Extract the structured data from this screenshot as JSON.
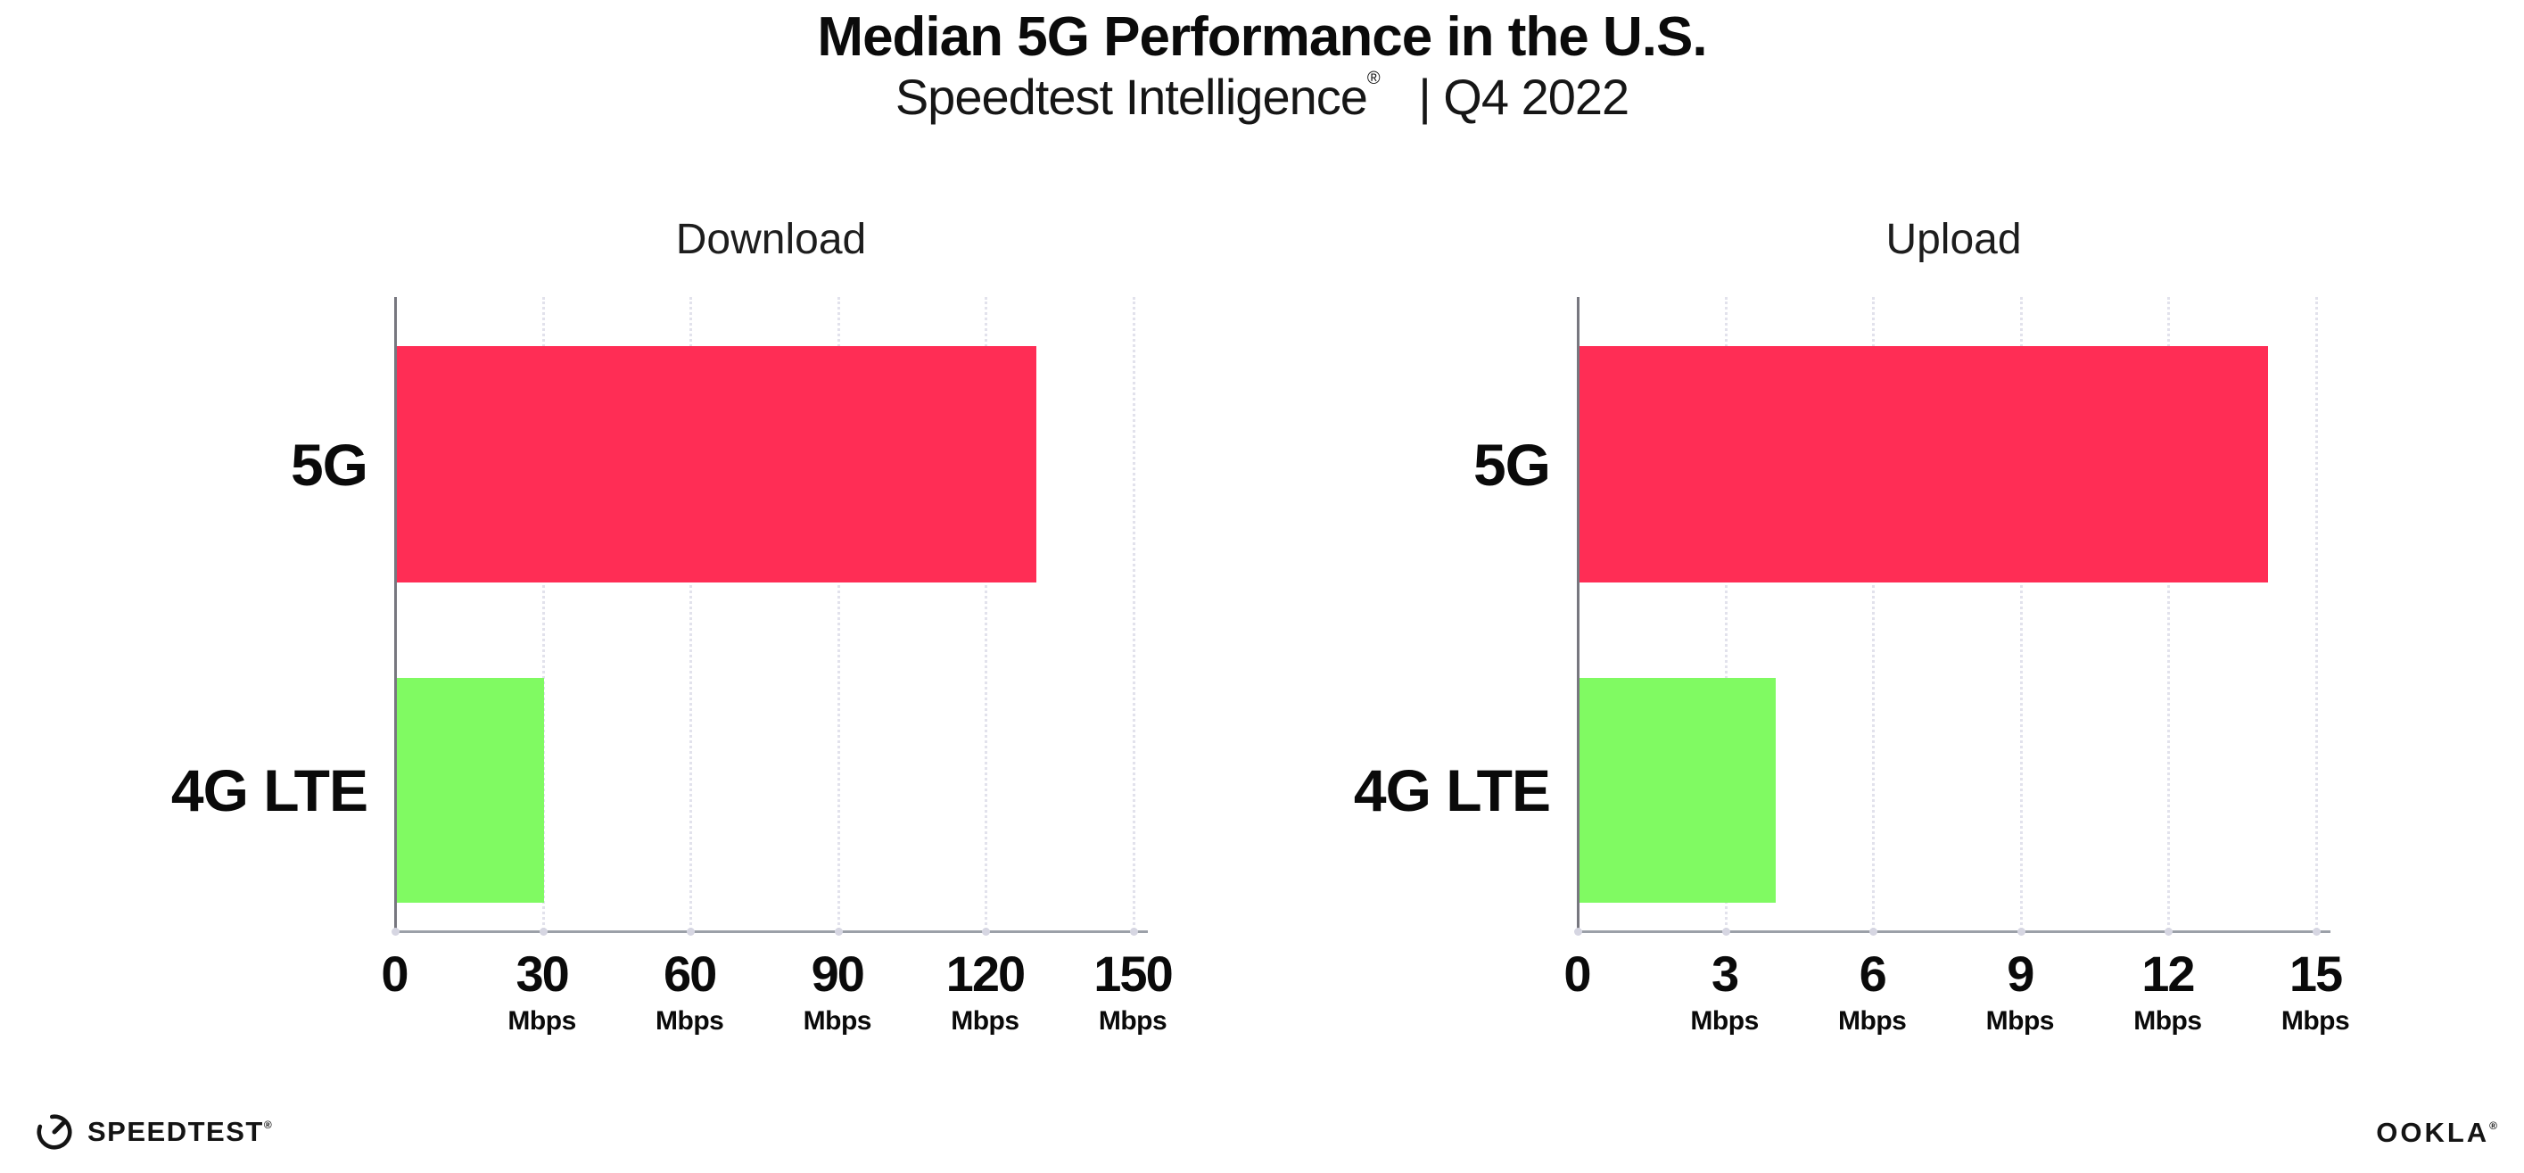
{
  "header": {
    "title": "Median 5G Performance in the U.S.",
    "subtitle_brand": "Speedtest Intelligence",
    "subtitle_reg": "®",
    "subtitle_rest": "| Q4 2022"
  },
  "chart_data": [
    {
      "type": "bar",
      "orientation": "horizontal",
      "title": "Download",
      "categories": [
        "5G",
        "4G LTE"
      ],
      "values": [
        130,
        30
      ],
      "value_unit": "Mbps",
      "xlim": [
        0,
        150
      ],
      "ticks": [
        0,
        30,
        60,
        90,
        120,
        150
      ],
      "tick_unit": "Mbps",
      "bar_colors": [
        "#ff2d55",
        "#80fa62"
      ],
      "grid": "dotted-vertical",
      "legend": "none"
    },
    {
      "type": "bar",
      "orientation": "horizontal",
      "title": "Upload",
      "categories": [
        "5G",
        "4G LTE"
      ],
      "values": [
        14,
        4
      ],
      "value_unit": "Mbps",
      "xlim": [
        0,
        15
      ],
      "ticks": [
        0,
        3,
        6,
        9,
        12,
        15
      ],
      "tick_unit": "Mbps",
      "bar_colors": [
        "#ff2d55",
        "#80fa62"
      ],
      "grid": "dotted-vertical",
      "legend": "none"
    }
  ],
  "footer": {
    "speedtest_label": "SPEEDTEST",
    "speedtest_reg": "®",
    "ookla_label": "OOKLA",
    "ookla_reg": "®"
  },
  "colors": {
    "bar_5g": "#ff2d55",
    "bar_4g_lte": "#80fa62",
    "y_axis": "#77777f",
    "x_axis": "#9ba0a8",
    "gridline": "#e2e2ec",
    "text": "#0b0b0b",
    "background": "#ffffff"
  }
}
